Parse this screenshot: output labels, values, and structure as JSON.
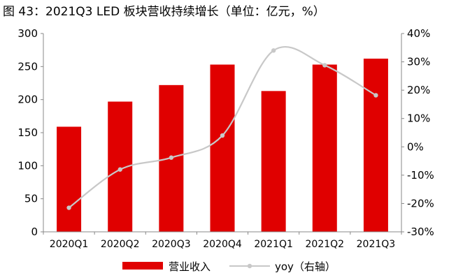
{
  "title": "图 43：2021Q3 LED 板块营收持续增长（单位：亿元，%）",
  "chart_data": {
    "type": "bar",
    "categories": [
      "2020Q1",
      "2020Q2",
      "2020Q3",
      "2020Q4",
      "2021Q1",
      "2021Q2",
      "2021Q3"
    ],
    "series": [
      {
        "name": "营业收入",
        "type": "bar",
        "axis": "left",
        "values": [
          159,
          197,
          222,
          253,
          213,
          253,
          262
        ]
      },
      {
        "name": "yoy（右轴）",
        "type": "line",
        "axis": "right",
        "values": [
          -21.5,
          -8.0,
          -3.8,
          4.0,
          34.0,
          28.8,
          18.2
        ]
      }
    ],
    "y_left": {
      "min": 0,
      "max": 300,
      "ticks": [
        0,
        50,
        100,
        150,
        200,
        250,
        300
      ]
    },
    "y_right": {
      "min": -30,
      "max": 40,
      "ticks": [
        "-30%",
        "-20%",
        "-10%",
        "0%",
        "10%",
        "20%",
        "30%",
        "40%"
      ]
    },
    "legend_position": "bottom-center",
    "grid": false
  },
  "colors": {
    "bar": "#e00000",
    "line": "#c8c8c8",
    "axis": "#888888"
  }
}
